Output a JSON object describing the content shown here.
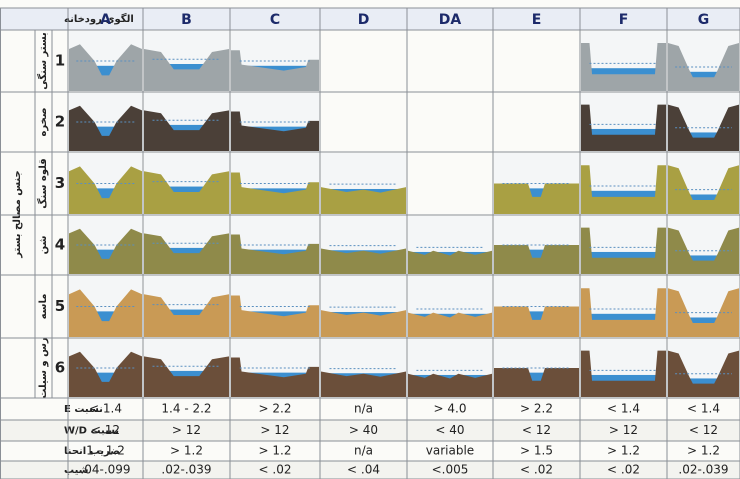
{
  "header": {
    "title": "الگوی رودخانه",
    "columns": [
      "A",
      "B",
      "C",
      "D",
      "DA",
      "E",
      "F",
      "G"
    ]
  },
  "side_label": "جنس مصالح بستر",
  "rows": [
    {
      "name": "بستر سنگی",
      "number": "1"
    },
    {
      "name": "صخره",
      "number": "2"
    },
    {
      "name": "قلوه سنگ",
      "number": "3"
    },
    {
      "name": "شن",
      "number": "4"
    },
    {
      "name": "ماسه",
      "number": "5"
    },
    {
      "name": "رس و سیلت",
      "number": "6"
    }
  ],
  "metrics": [
    {
      "label": "نسبت E",
      "values": [
        "< 1.4",
        "1.4 - 2.2",
        "> 2.2",
        "n/a",
        "> 4.0",
        "> 2.2",
        "< 1.4",
        "< 1.4"
      ]
    },
    {
      "label": "نسبت W/D",
      "values": [
        "< 12",
        "> 12",
        "> 12",
        "> 40",
        "< 40",
        "< 12",
        "> 12",
        "< 12"
      ]
    },
    {
      "label": "ضریب انحنا",
      "values": [
        "1 - 1.2",
        "> 1.2",
        "> 1.2",
        "n/a",
        "variable",
        "> 1.5",
        "> 1.2",
        "> 1.2"
      ]
    },
    {
      "label": "شیب",
      "values": [
        ".04-.099",
        ".02-.039",
        "< .02",
        "< .04",
        "<.005",
        "< .02",
        "< .02",
        ".02-.039"
      ]
    }
  ]
}
